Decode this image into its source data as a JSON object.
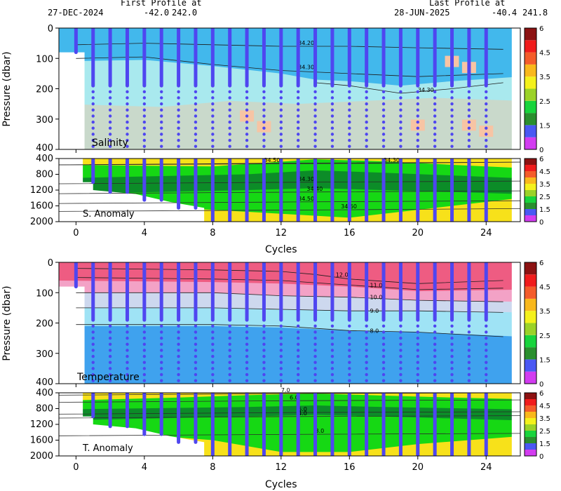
{
  "header": {
    "first_label": "First Profile at",
    "first_date": "27-DEC-2024",
    "first_lat": "-42.0",
    "first_lon": "242.0",
    "last_label": "Last Profile at",
    "last_date": "28-JUN-2025",
    "last_lat": "-40.4",
    "last_lon": "241.8"
  },
  "chart_data": [
    {
      "type": "heatmap",
      "panel": "salinity",
      "label": "Salinity",
      "ylabel": "Pressure (dbar)",
      "xlim": [
        -1,
        26
      ],
      "ylim": [
        400,
        0
      ],
      "y_ticks": [
        0,
        100,
        200,
        300,
        400
      ],
      "contours": [
        {
          "label": "34.20",
          "values_at_cycles": [
            [
              0,
              55
            ],
            [
              4,
              50
            ],
            [
              8,
              55
            ],
            [
              12,
              60
            ],
            [
              16,
              60
            ],
            [
              20,
              65
            ],
            [
              25,
              70
            ]
          ]
        },
        {
          "label": "34.30",
          "values_at_cycles": [
            [
              0,
              100
            ],
            [
              4,
              95
            ],
            [
              8,
              120
            ],
            [
              12,
              140
            ],
            [
              16,
              150
            ],
            [
              20,
              160
            ],
            [
              25,
              150
            ]
          ]
        },
        {
          "label": "34.30",
          "values_at_cycles": [
            [
              14,
              180
            ],
            [
              16,
              190
            ],
            [
              19,
              215
            ],
            [
              22,
              200
            ],
            [
              25,
              180
            ]
          ]
        }
      ],
      "colorbar": {
        "ticks": [
          0,
          1.5,
          2.5,
          3.5,
          4.5,
          6
        ]
      }
    },
    {
      "type": "heatmap",
      "panel": "salinity_anomaly",
      "label": "S. Anomaly",
      "xlim": [
        -1,
        26
      ],
      "ylim": [
        2000,
        400
      ],
      "y_ticks": [
        400,
        800,
        1200,
        1600,
        2000
      ],
      "contour_labels": [
        "34.50",
        "34.30",
        "34.30",
        "34.40",
        "34.50",
        "34.60"
      ],
      "colorbar": {
        "ticks": [
          0,
          1.5,
          2.5,
          3.5,
          4.5,
          6
        ]
      }
    },
    {
      "type": "heatmap",
      "panel": "temperature",
      "label": "Temperature",
      "ylabel": "Pressure (dbar)",
      "xlim": [
        -1,
        26
      ],
      "ylim": [
        400,
        0
      ],
      "y_ticks": [
        0,
        100,
        200,
        300,
        400
      ],
      "contours": [
        {
          "label": "12.0",
          "values_at_cycles": [
            [
              0,
              20
            ],
            [
              8,
              25
            ],
            [
              12,
              30
            ],
            [
              14,
              40
            ],
            [
              16,
              55
            ],
            [
              20,
              70
            ],
            [
              25,
              60
            ]
          ]
        },
        {
          "label": "11.0",
          "values_at_cycles": [
            [
              0,
              50
            ],
            [
              8,
              55
            ],
            [
              12,
              60
            ],
            [
              16,
              75
            ],
            [
              20,
              90
            ],
            [
              25,
              85
            ]
          ]
        },
        {
          "label": "10.0",
          "values_at_cycles": [
            [
              0,
              100
            ],
            [
              8,
              100
            ],
            [
              12,
              110
            ],
            [
              16,
              115
            ],
            [
              20,
              125
            ],
            [
              25,
              130
            ]
          ]
        },
        {
          "label": "9.0",
          "values_at_cycles": [
            [
              0,
              150
            ],
            [
              8,
              150
            ],
            [
              12,
              155
            ],
            [
              16,
              160
            ],
            [
              20,
              160
            ],
            [
              25,
              165
            ]
          ]
        },
        {
          "label": "8.0",
          "values_at_cycles": [
            [
              0,
              205
            ],
            [
              8,
              205
            ],
            [
              12,
              210
            ],
            [
              16,
              225
            ],
            [
              20,
              230
            ],
            [
              25,
              245
            ]
          ]
        }
      ],
      "colorbar": {
        "ticks": [
          0,
          1.5,
          2.5,
          3.5,
          4.5,
          6
        ]
      }
    },
    {
      "type": "heatmap",
      "panel": "temperature_anomaly",
      "label": "T. Anomaly",
      "xlabel": "Cycles",
      "xlim": [
        -1,
        26
      ],
      "ylim": [
        2000,
        400
      ],
      "y_ticks": [
        400,
        800,
        1200,
        1600,
        2000
      ],
      "x_ticks": [
        0,
        4,
        8,
        12,
        16,
        20,
        24
      ],
      "contour_labels": [
        "7.0",
        "6.0",
        "5.0",
        "4.0",
        "3.0"
      ],
      "colorbar": {
        "ticks": [
          0,
          1.5,
          2.5,
          3.5,
          4.5,
          6
        ]
      }
    }
  ],
  "profiles": {
    "cycles": [
      0,
      1,
      2,
      3,
      4,
      5,
      6,
      7,
      8,
      9,
      10,
      11,
      12,
      13,
      14,
      15,
      16,
      17,
      18,
      19,
      20,
      21,
      22,
      23,
      24
    ],
    "shallow_depth_cycle0": 80
  },
  "colors": {
    "profile": "#4f46f0",
    "sal_top": "#42b8ec",
    "sal_mid": "#a9e9ee",
    "sal_deep": "#c9d9cb",
    "temp_top": "#ee5c82",
    "temp_mid1": "#f3a2c6",
    "temp_mid2": "#cdd8ee",
    "temp_mid3": "#9fe3f5",
    "temp_deep": "#3fa2ee",
    "anom_yellow": "#f7e11a",
    "anom_green": "#16d814",
    "anom_darkgreen": "#0c8c28"
  },
  "colorbar_colors": [
    "#d23cf0",
    "#4a58f3",
    "#2a8f2e",
    "#18d43c",
    "#9bd228",
    "#f4f11c",
    "#f9b81c",
    "#f45c2a",
    "#f01c1c",
    "#8c1212"
  ]
}
